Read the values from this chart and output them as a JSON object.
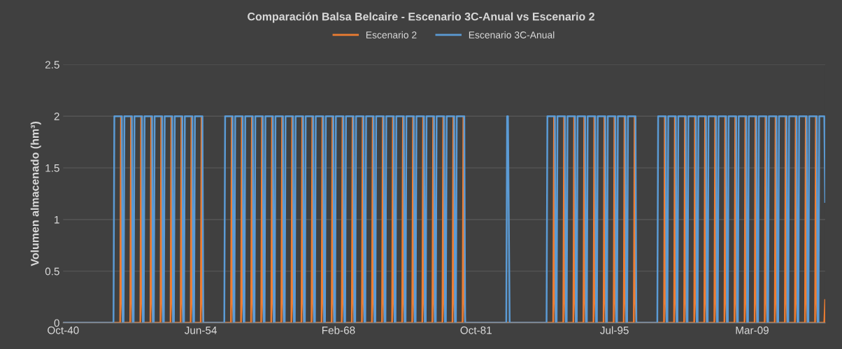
{
  "chart_data": {
    "type": "line",
    "title": "Comparación Balsa Belcaire - Escenario 3C-Anual vs Escenario 2",
    "ylabel": "Volumen almacenado (hm³)",
    "x": [
      "1940-10",
      "1945-10",
      "1945-11",
      "1946-06",
      "1946-07",
      "1946-08",
      "1946-09",
      "1946-10",
      "1946-11",
      "1947-06",
      "1947-07",
      "1947-08",
      "1947-09",
      "1947-10",
      "1947-11",
      "1948-06",
      "1948-07",
      "1948-08",
      "1948-09",
      "1948-10",
      "1948-11",
      "1949-06",
      "1949-07",
      "1949-08",
      "1949-09",
      "1949-10",
      "1949-11",
      "1950-06",
      "1950-07",
      "1950-08",
      "1950-09",
      "1950-10",
      "1950-11",
      "1951-06",
      "1951-07",
      "1951-08",
      "1951-09",
      "1951-10",
      "1951-11",
      "1952-06",
      "1952-07",
      "1952-08",
      "1952-09",
      "1952-10",
      "1952-11",
      "1953-06",
      "1953-07",
      "1953-08",
      "1953-09",
      "1953-10",
      "1953-11",
      "1954-06",
      "1954-07",
      "1954-08",
      "1954-09",
      "1956-10",
      "1956-11",
      "1957-06",
      "1957-07",
      "1957-08",
      "1957-09",
      "1957-10",
      "1957-11",
      "1958-06",
      "1958-07",
      "1958-08",
      "1958-09",
      "1958-10",
      "1958-11",
      "1959-06",
      "1959-07",
      "1959-08",
      "1959-09",
      "1959-10",
      "1959-11",
      "1960-06",
      "1960-07",
      "1960-08",
      "1960-09",
      "1960-10",
      "1960-11",
      "1961-06",
      "1961-07",
      "1961-08",
      "1961-09",
      "1961-10",
      "1961-11",
      "1962-06",
      "1962-07",
      "1962-08",
      "1962-09",
      "1962-10",
      "1962-11",
      "1963-06",
      "1963-07",
      "1963-08",
      "1963-09",
      "1963-10",
      "1963-11",
      "1964-06",
      "1964-07",
      "1964-08",
      "1964-09",
      "1964-10",
      "1964-11",
      "1965-06",
      "1965-07",
      "1965-08",
      "1965-09",
      "1965-10",
      "1965-11",
      "1966-06",
      "1966-07",
      "1966-08",
      "1966-09",
      "1966-10",
      "1966-11",
      "1967-06",
      "1967-07",
      "1967-08",
      "1967-09",
      "1967-10",
      "1967-11",
      "1968-06",
      "1968-07",
      "1968-08",
      "1968-09",
      "1968-10",
      "1968-11",
      "1969-06",
      "1969-07",
      "1969-08",
      "1969-09",
      "1969-10",
      "1969-11",
      "1970-06",
      "1970-07",
      "1970-08",
      "1970-09",
      "1970-10",
      "1970-11",
      "1971-06",
      "1971-07",
      "1971-08",
      "1971-09",
      "1971-10",
      "1971-11",
      "1972-06",
      "1972-07",
      "1972-08",
      "1972-09",
      "1972-10",
      "1972-11",
      "1973-06",
      "1973-07",
      "1973-08",
      "1973-09",
      "1973-10",
      "1973-11",
      "1974-06",
      "1974-07",
      "1974-08",
      "1974-09",
      "1974-10",
      "1974-11",
      "1975-06",
      "1975-07",
      "1975-08",
      "1975-09",
      "1975-10",
      "1975-11",
      "1976-06",
      "1976-07",
      "1976-08",
      "1976-09",
      "1976-10",
      "1976-11",
      "1977-06",
      "1977-07",
      "1977-08",
      "1977-09",
      "1977-10",
      "1977-11",
      "1978-06",
      "1978-07",
      "1978-08",
      "1978-09",
      "1978-10",
      "1978-11",
      "1979-06",
      "1979-07",
      "1979-08",
      "1979-09",
      "1979-10",
      "1979-11",
      "1980-06",
      "1980-07",
      "1980-08",
      "1980-09",
      "1984-10",
      "1984-11",
      "1984-12",
      "1985-02",
      "1988-10",
      "1988-11",
      "1989-06",
      "1989-07",
      "1989-08",
      "1989-09",
      "1989-10",
      "1989-11",
      "1990-06",
      "1990-07",
      "1990-08",
      "1990-09",
      "1990-10",
      "1990-11",
      "1991-06",
      "1991-07",
      "1991-08",
      "1991-09",
      "1991-10",
      "1991-11",
      "1992-06",
      "1992-07",
      "1992-08",
      "1992-09",
      "1992-10",
      "1992-11",
      "1993-06",
      "1993-07",
      "1993-08",
      "1993-09",
      "1993-10",
      "1993-11",
      "1994-06",
      "1994-07",
      "1994-08",
      "1994-09",
      "1994-10",
      "1994-11",
      "1995-06",
      "1995-07",
      "1995-08",
      "1995-09",
      "1995-10",
      "1995-11",
      "1996-06",
      "1996-07",
      "1996-08",
      "1996-09",
      "1996-10",
      "1996-11",
      "1997-06",
      "1997-07",
      "1997-08",
      "1997-09",
      "1999-10",
      "1999-11",
      "2000-06",
      "2000-07",
      "2000-08",
      "2000-09",
      "2000-10",
      "2000-11",
      "2001-06",
      "2001-07",
      "2001-08",
      "2001-09",
      "2001-10",
      "2001-11",
      "2002-06",
      "2002-07",
      "2002-08",
      "2002-09",
      "2002-10",
      "2002-11",
      "2003-06",
      "2003-07",
      "2003-08",
      "2003-09",
      "2003-10",
      "2003-11",
      "2004-06",
      "2004-07",
      "2004-08",
      "2004-09",
      "2004-10",
      "2004-11",
      "2005-06",
      "2005-07",
      "2005-08",
      "2005-09",
      "2005-10",
      "2005-11",
      "2006-06",
      "2006-07",
      "2006-08",
      "2006-09",
      "2006-10",
      "2006-11",
      "2007-06",
      "2007-07",
      "2007-08",
      "2007-09",
      "2007-10",
      "2007-11",
      "2008-06",
      "2008-07",
      "2008-08",
      "2008-09",
      "2008-10",
      "2008-11",
      "2009-06",
      "2009-07",
      "2009-08",
      "2009-09",
      "2009-10",
      "2009-11",
      "2010-06",
      "2010-07",
      "2010-08",
      "2010-09",
      "2010-10",
      "2010-11",
      "2011-06",
      "2011-07",
      "2011-08",
      "2011-09",
      "2011-10",
      "2011-11",
      "2012-06",
      "2012-07",
      "2012-08",
      "2012-09",
      "2012-10",
      "2012-11",
      "2013-06",
      "2013-07",
      "2013-08",
      "2013-09",
      "2013-10",
      "2013-11",
      "2014-06",
      "2014-07",
      "2014-08",
      "2014-09",
      "2014-10",
      "2014-11",
      "2015-06",
      "2015-07",
      "2015-08",
      "2015-09",
      "2015-10",
      "2015-11",
      "2016-05",
      "2016-06"
    ],
    "series": [
      {
        "name": "Escenario 2",
        "color": "#ed7d31",
        "values": [
          0,
          0,
          0,
          0,
          2,
          0.22,
          0,
          0,
          0,
          0,
          2,
          0.22,
          0,
          0,
          0,
          0,
          2,
          0.22,
          0,
          0,
          0,
          0,
          2,
          0.22,
          0,
          0,
          0,
          0,
          2,
          0.22,
          0,
          0,
          0,
          0,
          2,
          0.22,
          0,
          0,
          0,
          0,
          2,
          0.22,
          0,
          0,
          0,
          0,
          2,
          0.22,
          0,
          0,
          0,
          0,
          2,
          0.22,
          0,
          0,
          0,
          0,
          2,
          0.22,
          0,
          0,
          0,
          0,
          2,
          0.22,
          0,
          0,
          0,
          0,
          2,
          0.22,
          0,
          0,
          0,
          0,
          2,
          0.22,
          0,
          0,
          0,
          0,
          2,
          0.22,
          0,
          0,
          0,
          0,
          2,
          0.22,
          0,
          0,
          0,
          0,
          2,
          0.22,
          0,
          0,
          0,
          0,
          2,
          0.22,
          0,
          0,
          0,
          0,
          2,
          0.22,
          0,
          0,
          0,
          0,
          2,
          0.22,
          0,
          0,
          0,
          0,
          2,
          0.22,
          0,
          0,
          0,
          0,
          2,
          0.22,
          0,
          0,
          0,
          0,
          2,
          0.22,
          0,
          0,
          0,
          0,
          2,
          0.22,
          0,
          0,
          0,
          0,
          2,
          0.22,
          0,
          0,
          0,
          0,
          2,
          0.22,
          0,
          0,
          0,
          0,
          2,
          0.22,
          0,
          0,
          0,
          0,
          2,
          0.22,
          0,
          0,
          0,
          0,
          2,
          0.22,
          0,
          0,
          0,
          0,
          2,
          0.22,
          0,
          0,
          0,
          0,
          2,
          0.22,
          0,
          0,
          0,
          0,
          2,
          0.22,
          0,
          0,
          0,
          0,
          2,
          0.22,
          0,
          0,
          0,
          0,
          2,
          0.22,
          0,
          0,
          0,
          0,
          0,
          0,
          0,
          0,
          2,
          0.22,
          0,
          0,
          0,
          0,
          2,
          0.22,
          0,
          0,
          0,
          0,
          2,
          0.22,
          0,
          0,
          0,
          0,
          2,
          0.22,
          0,
          0,
          0,
          0,
          2,
          0.22,
          0,
          0,
          0,
          0,
          2,
          0.22,
          0,
          0,
          0,
          0,
          2,
          0.22,
          0,
          0,
          0,
          0,
          2,
          0.22,
          0,
          0,
          0,
          0,
          2,
          0.22,
          0,
          0,
          0,
          0,
          2,
          0.22,
          0,
          0,
          0,
          0,
          2,
          0.22,
          0,
          0,
          0,
          0,
          2,
          0.22,
          0,
          0,
          0,
          0,
          2,
          0.22,
          0,
          0,
          0,
          0,
          2,
          0.22,
          0,
          0,
          0,
          0,
          2,
          0.22,
          0,
          0,
          0,
          0,
          2,
          0.22,
          0,
          0,
          0,
          0,
          2,
          0.22,
          0,
          0,
          0,
          0,
          2,
          0.22,
          0,
          0,
          0,
          0,
          2,
          0.22,
          0,
          0,
          0,
          0,
          2,
          0.22,
          0,
          0,
          0,
          0,
          2,
          0.22,
          0,
          0,
          0,
          0,
          2,
          0.22,
          0,
          0,
          0,
          0,
          2,
          0.22,
          0,
          0,
          0,
          0,
          2,
          0.22,
          0,
          0,
          0,
          0,
          2,
          0.22,
          0,
          0,
          0,
          0,
          0.22
        ]
      },
      {
        "name": "Escenario 3C-Anual",
        "color": "#5b9bd5",
        "values": [
          0,
          0,
          2,
          2,
          2,
          2,
          0,
          0,
          2,
          2,
          2,
          2,
          0,
          0,
          2,
          2,
          2,
          2,
          0,
          0,
          2,
          2,
          2,
          2,
          0,
          0,
          2,
          2,
          2,
          2,
          0,
          0,
          2,
          2,
          2,
          2,
          0,
          0,
          2,
          2,
          2,
          2,
          0,
          0,
          2,
          2,
          2,
          2,
          0,
          0,
          2,
          2,
          2,
          2,
          0,
          0,
          2,
          2,
          2,
          2,
          0,
          0,
          2,
          2,
          2,
          2,
          0,
          0,
          2,
          2,
          2,
          2,
          0,
          0,
          2,
          2,
          2,
          2,
          0,
          0,
          2,
          2,
          2,
          2,
          0,
          0,
          2,
          2,
          2,
          2,
          0,
          0,
          2,
          2,
          2,
          2,
          0,
          0,
          2,
          2,
          2,
          2,
          0,
          0,
          2,
          2,
          2,
          2,
          0,
          0,
          2,
          2,
          2,
          2,
          0,
          0,
          2,
          2,
          2,
          2,
          0,
          0,
          2,
          2,
          2,
          2,
          0,
          0,
          2,
          2,
          2,
          2,
          0,
          0,
          2,
          2,
          2,
          2,
          0,
          0,
          2,
          2,
          2,
          2,
          0,
          0,
          2,
          2,
          2,
          2,
          0,
          0,
          2,
          2,
          2,
          2,
          0,
          0,
          2,
          2,
          2,
          2,
          0,
          0,
          2,
          2,
          2,
          2,
          0,
          0,
          2,
          2,
          2,
          2,
          0,
          0,
          2,
          2,
          2,
          2,
          0,
          0,
          2,
          2,
          2,
          2,
          0,
          0,
          2,
          2,
          2,
          2,
          0,
          0,
          2,
          2,
          2,
          2,
          0,
          0,
          2,
          2,
          0,
          0,
          2,
          2,
          2,
          2,
          0,
          0,
          2,
          2,
          2,
          2,
          0,
          0,
          2,
          2,
          2,
          2,
          0,
          0,
          2,
          2,
          2,
          2,
          0,
          0,
          2,
          2,
          2,
          2,
          0,
          0,
          2,
          2,
          2,
          2,
          0,
          0,
          2,
          2,
          2,
          2,
          0,
          0,
          2,
          2,
          2,
          2,
          0,
          0,
          2,
          2,
          2,
          2,
          0,
          0,
          2,
          2,
          2,
          2,
          0,
          0,
          2,
          2,
          2,
          2,
          0,
          0,
          2,
          2,
          2,
          2,
          0,
          0,
          2,
          2,
          2,
          2,
          0,
          0,
          2,
          2,
          2,
          2,
          0,
          0,
          2,
          2,
          2,
          2,
          0,
          0,
          2,
          2,
          2,
          2,
          0,
          0,
          2,
          2,
          2,
          2,
          0,
          0,
          2,
          2,
          2,
          2,
          0,
          0,
          2,
          2,
          2,
          2,
          0,
          0,
          2,
          2,
          2,
          2,
          0,
          0,
          2,
          2,
          2,
          2,
          0,
          0,
          2,
          2,
          2,
          2,
          0,
          0,
          2,
          2,
          2,
          2,
          0,
          0,
          2,
          2,
          2,
          2,
          0,
          0,
          2,
          2,
          2,
          2,
          0,
          0,
          2,
          2,
          1.17
        ]
      }
    ],
    "xlim": [
      "1940-10",
      "2016-06"
    ],
    "xticks": [
      {
        "value": "1940-10",
        "label": "Oct-40"
      },
      {
        "value": "1954-06",
        "label": "Jun-54"
      },
      {
        "value": "1968-02",
        "label": "Feb-68"
      },
      {
        "value": "1981-10",
        "label": "Oct-81"
      },
      {
        "value": "1995-07",
        "label": "Jul-95"
      },
      {
        "value": "2009-03",
        "label": "Mar-09"
      }
    ],
    "ylim": [
      0,
      2.5
    ],
    "yticks": [
      0,
      0.5,
      1,
      1.5,
      2,
      2.5
    ],
    "grid": "y",
    "legend": "top",
    "marker": "none",
    "line_style": "solid"
  }
}
